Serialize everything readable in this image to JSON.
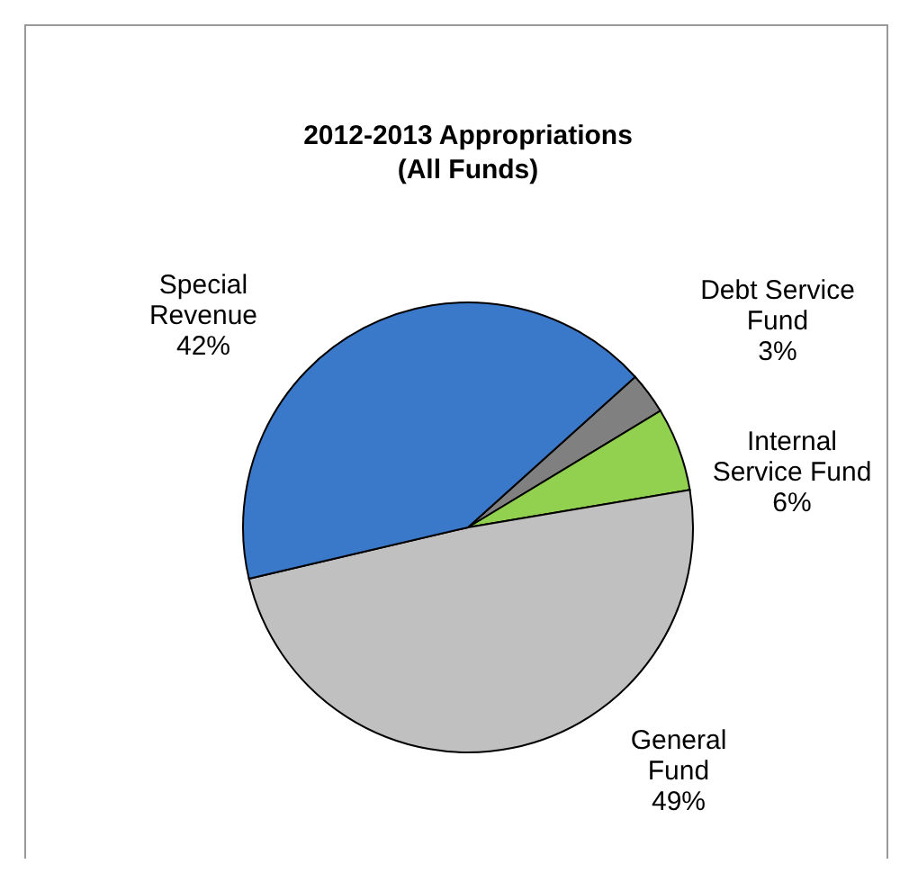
{
  "chart_data": {
    "type": "pie",
    "title": "2012-2013 Appropriations\n(All Funds)",
    "categories": [
      "Debt Service Fund",
      "Internal Service Fund",
      "General Fund",
      "Special Revenue"
    ],
    "values": [
      3,
      6,
      49,
      42
    ],
    "colors": [
      "#808080",
      "#92d050",
      "#c0c0c0",
      "#3a78c9"
    ],
    "value_labels": [
      "3%",
      "6%",
      "49%",
      "42%"
    ]
  }
}
